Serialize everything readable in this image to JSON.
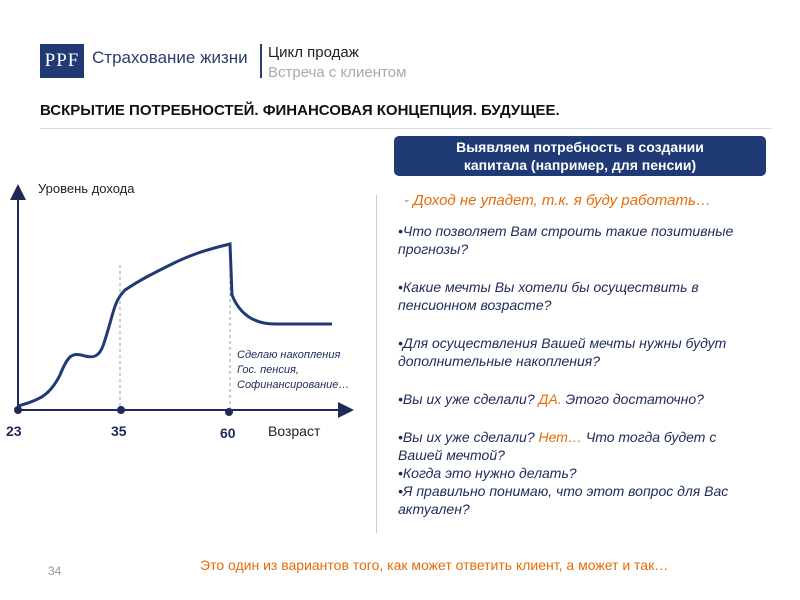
{
  "header": {
    "logo": "PPF",
    "company": "Страхование жизни",
    "section": "Цикл продаж",
    "subsection": "Встреча с клиентом"
  },
  "title": "ВСКРЫТИЕ ПОТРЕБНОСТЕЙ. ФИНАНСОВАЯ КОНЦЕПЦИЯ. БУДУЩЕЕ.",
  "diagram": {
    "y_label": "Уровень дохода",
    "x_label": "Возраст",
    "ages": [
      23,
      35,
      60
    ],
    "note": [
      "Сделаю накопления",
      "Гос. пенсия,",
      "Софинансирование…"
    ]
  },
  "banner": [
    "Выявляем потребность в создании",
    "капитала (например, для пенсии)"
  ],
  "answer": "- Доход не упадет, т.к. я буду работать…",
  "questions": [
    [
      "•Что позволяет Вам строить такие позитивные прогнозы?"
    ],
    [
      "•Какие мечты Вы хотели бы осуществить в пенсионном возрасте?"
    ],
    [
      "•Для осуществления Вашей мечты нужны будут дополнительные накопления?"
    ],
    [
      "•Вы их уже сделали?",
      "ДА.",
      "Этого достаточно?"
    ],
    [
      "•Вы их уже сделали?",
      "Нет…",
      "Что тогда будет с Вашей мечтой?"
    ],
    [
      "•Когда это нужно делать?"
    ],
    [
      "•Я правильно понимаю, что этот вопрос для Вас актуален?"
    ]
  ],
  "footer": {
    "page": 34,
    "note": "Это один из вариантов того, как может ответить клиент,  а может и так…"
  }
}
